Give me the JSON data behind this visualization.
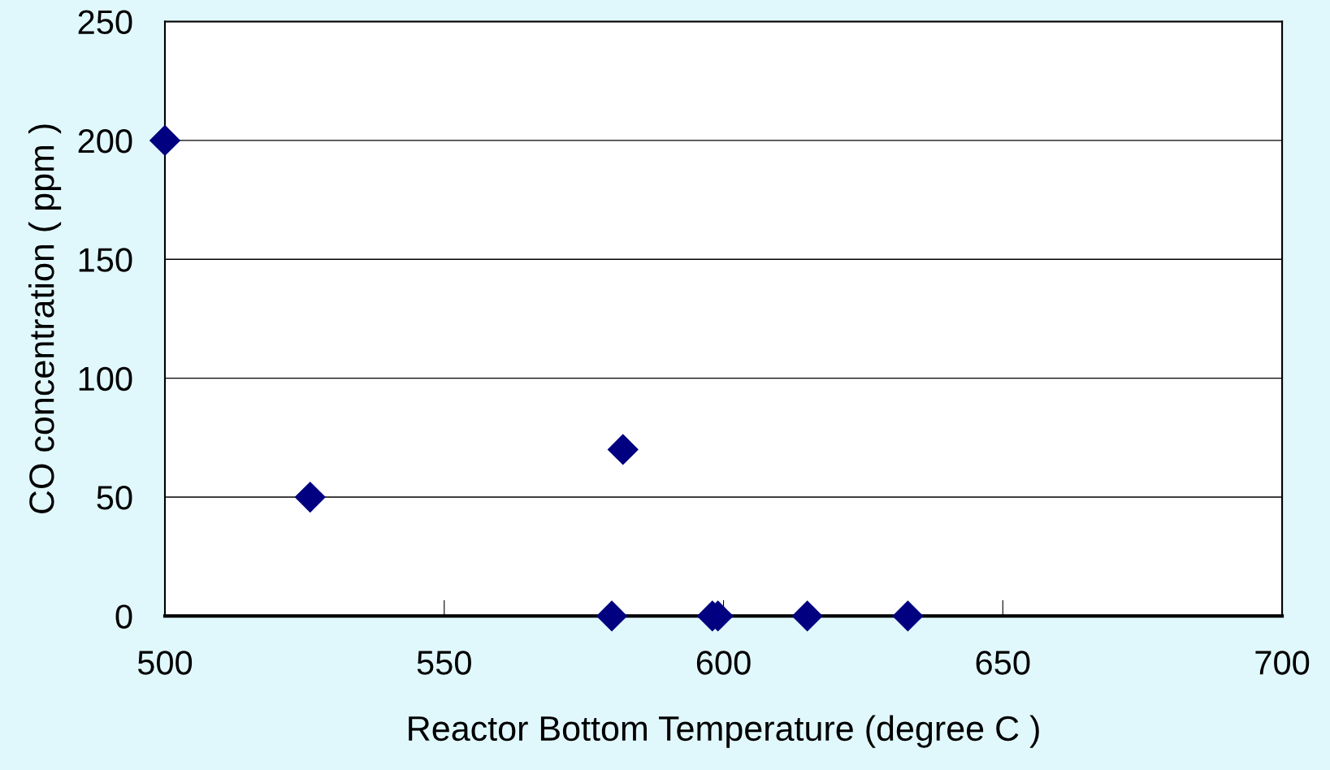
{
  "chart_data": {
    "type": "scatter",
    "xlabel": "Reactor Bottom Temperature (degree C )",
    "ylabel": "CO concentration ( ppm )",
    "x": [
      500,
      526,
      580,
      582,
      598,
      599,
      615,
      633
    ],
    "values": [
      200,
      50,
      0,
      70,
      0,
      0,
      0,
      0
    ],
    "color": "#000080",
    "marker": "diamond",
    "xlim": [
      500,
      700
    ],
    "xticks": [
      500,
      550,
      600,
      650,
      700
    ],
    "ylim": [
      0,
      250
    ],
    "yticks": [
      0,
      50,
      100,
      150,
      200,
      250
    ],
    "grid": "y"
  }
}
